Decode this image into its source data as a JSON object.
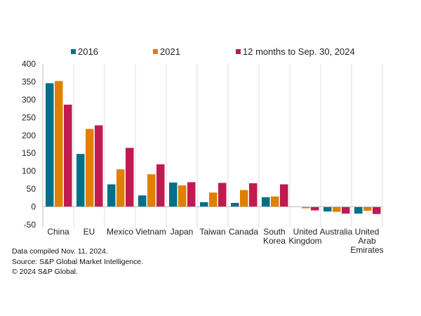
{
  "chart_data": {
    "type": "bar",
    "categories": [
      "China",
      "EU",
      "Mexico",
      "Vietnam",
      "Japan",
      "Taiwan",
      "Canada",
      "South Korea",
      "United Kingdom",
      "Australia",
      "United Arab Emirates"
    ],
    "category_label_lines": [
      [
        "China"
      ],
      [
        "EU"
      ],
      [
        "Mexico"
      ],
      [
        "Vietnam"
      ],
      [
        "Japan"
      ],
      [
        "Taiwan"
      ],
      [
        "Canada"
      ],
      [
        "South",
        "Korea"
      ],
      [
        "United",
        "Kingdom"
      ],
      [
        "Australia"
      ],
      [
        "United",
        "Arab",
        "Emirates"
      ]
    ],
    "series": [
      {
        "name": "2016",
        "color": "#00708a",
        "values": [
          346,
          148,
          63,
          32,
          68,
          13,
          11,
          27,
          0,
          -13,
          -19
        ]
      },
      {
        "name": "2021",
        "color": "#e07f00",
        "values": [
          352,
          218,
          105,
          91,
          60,
          40,
          47,
          29,
          -4,
          -14,
          -11
        ]
      },
      {
        "name": "12 months to Sep. 30, 2024",
        "color": "#c01a50",
        "values": [
          286,
          228,
          165,
          119,
          69,
          67,
          66,
          63,
          -10,
          -19,
          -20
        ]
      }
    ],
    "ylim": [
      -50,
      400
    ],
    "yticks": [
      400,
      350,
      300,
      250,
      200,
      150,
      100,
      50,
      0,
      -50
    ],
    "grid": "vertical category separators",
    "legend_position": "top"
  },
  "footnotes": [
    "Data compiled Nov. 11, 2024.",
    "Source: S&P Global Market Intelligence.",
    "© 2024 S&P Global."
  ]
}
